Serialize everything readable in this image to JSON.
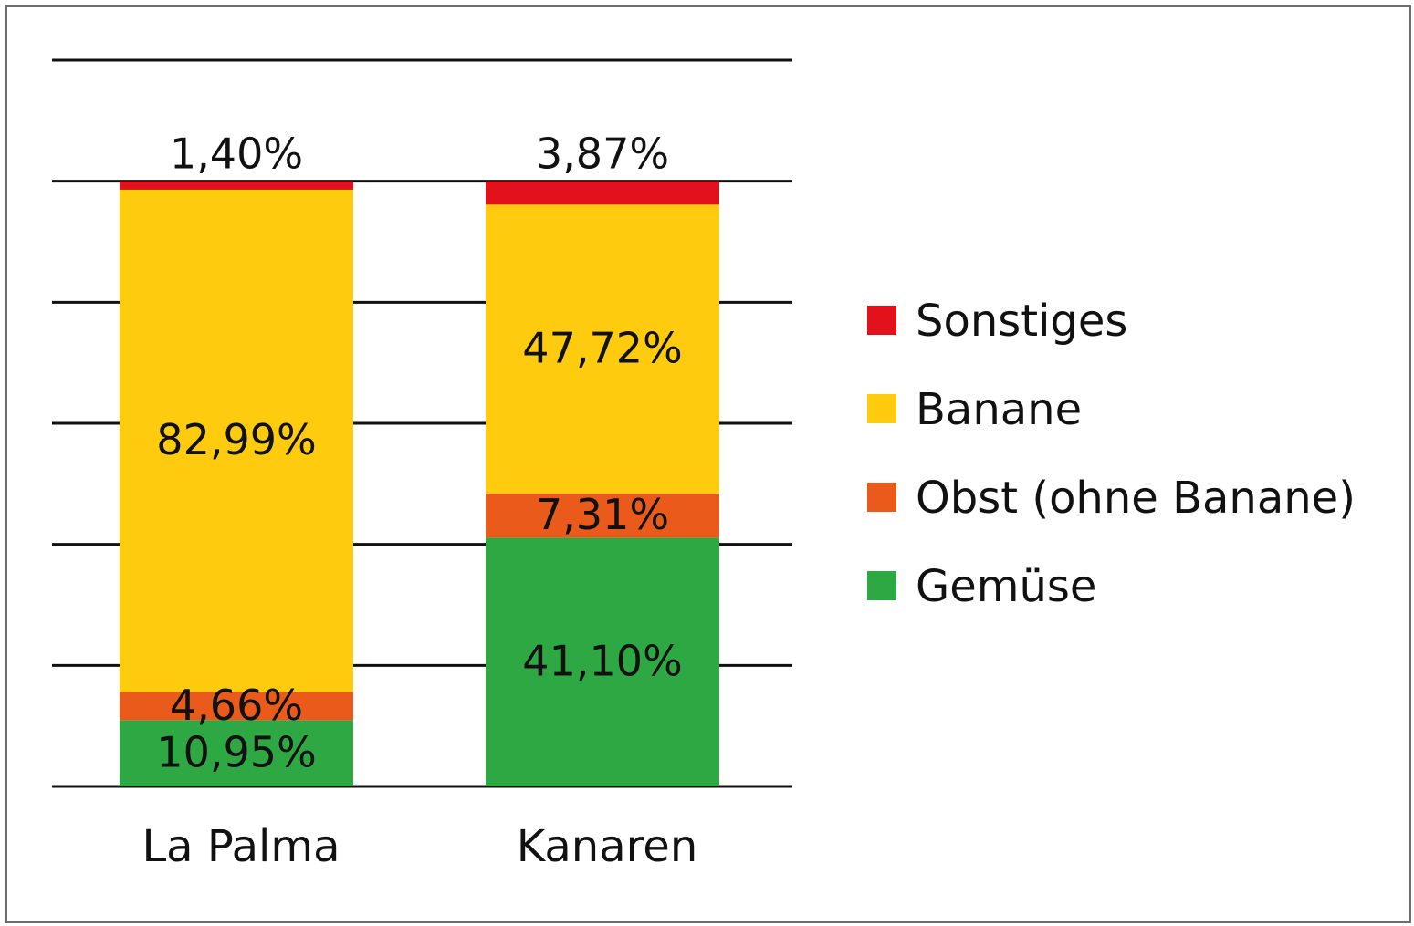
{
  "chart_data": {
    "type": "bar",
    "stacked": true,
    "categories": [
      "La Palma",
      "Kanaren"
    ],
    "series": [
      {
        "name": "Gemüse",
        "color": "#2ea843",
        "values": [
          10.95,
          41.1
        ],
        "labels": [
          "10,95%",
          "41,10%"
        ]
      },
      {
        "name": "Obst (ohne Banane)",
        "color": "#ea5a1a",
        "values": [
          4.66,
          7.31
        ],
        "labels": [
          "4,66%",
          "7,31%"
        ]
      },
      {
        "name": "Banane",
        "color": "#fecb0e",
        "values": [
          82.99,
          47.72
        ],
        "labels": [
          "82,99%",
          "47,72%"
        ]
      },
      {
        "name": "Sonstiges",
        "color": "#e3111b",
        "values": [
          1.4,
          3.87
        ],
        "labels": [
          "1,40%",
          "3,87%"
        ]
      }
    ],
    "ylim": [
      0,
      120
    ],
    "grid": true,
    "legend_position": "right",
    "legend_order": [
      "Sonstiges",
      "Banane",
      "Obst (ohne Banane)",
      "Gemüse"
    ]
  }
}
